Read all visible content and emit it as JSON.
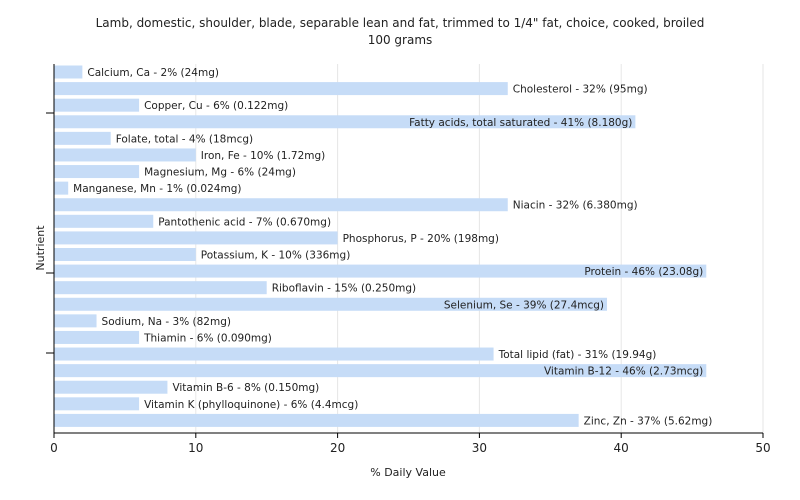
{
  "chart_data": {
    "type": "bar",
    "orientation": "horizontal",
    "title": "Lamb, domestic, shoulder, blade, separable lean and fat, trimmed to 1/4\" fat, choice, cooked, broiled",
    "subtitle": "100 grams",
    "xlabel": "% Daily Value",
    "ylabel": "Nutrient",
    "xlim": [
      0,
      50
    ],
    "xticks": [
      0,
      10,
      20,
      30,
      40,
      50
    ],
    "grid": true,
    "bar_color": "#c6dcf7",
    "categories": [
      "Calcium, Ca",
      "Cholesterol",
      "Copper, Cu",
      "Fatty acids, total saturated",
      "Folate, total",
      "Iron, Fe",
      "Magnesium, Mg",
      "Manganese, Mn",
      "Niacin",
      "Pantothenic acid",
      "Phosphorus, P",
      "Potassium, K",
      "Protein",
      "Riboflavin",
      "Selenium, Se",
      "Sodium, Na",
      "Thiamin",
      "Total lipid (fat)",
      "Vitamin B-12",
      "Vitamin B-6",
      "Vitamin K (phylloquinone)",
      "Zinc, Zn"
    ],
    "values": [
      2,
      32,
      6,
      41,
      4,
      10,
      6,
      1,
      32,
      7,
      20,
      10,
      46,
      15,
      39,
      3,
      6,
      31,
      46,
      8,
      6,
      37
    ],
    "labels": [
      "Calcium, Ca - 2% (24mg)",
      "Cholesterol - 32% (95mg)",
      "Copper, Cu - 6% (0.122mg)",
      "Fatty acids, total saturated - 41% (8.180g)",
      "Folate, total - 4% (18mcg)",
      "Iron, Fe - 10% (1.72mg)",
      "Magnesium, Mg - 6% (24mg)",
      "Manganese, Mn - 1% (0.024mg)",
      "Niacin - 32% (6.380mg)",
      "Pantothenic acid - 7% (0.670mg)",
      "Phosphorus, P - 20% (198mg)",
      "Potassium, K - 10% (336mg)",
      "Protein - 46% (23.08g)",
      "Riboflavin - 15% (0.250mg)",
      "Selenium, Se - 39% (27.4mcg)",
      "Sodium, Na - 3% (82mg)",
      "Thiamin - 6% (0.090mg)",
      "Total lipid (fat) - 31% (19.94g)",
      "Vitamin B-12 - 46% (2.73mcg)",
      "Vitamin B-6 - 8% (0.150mg)",
      "Vitamin K (phylloquinone) - 6% (4.4mcg)",
      "Zinc, Zn - 37% (5.62mg)"
    ]
  }
}
